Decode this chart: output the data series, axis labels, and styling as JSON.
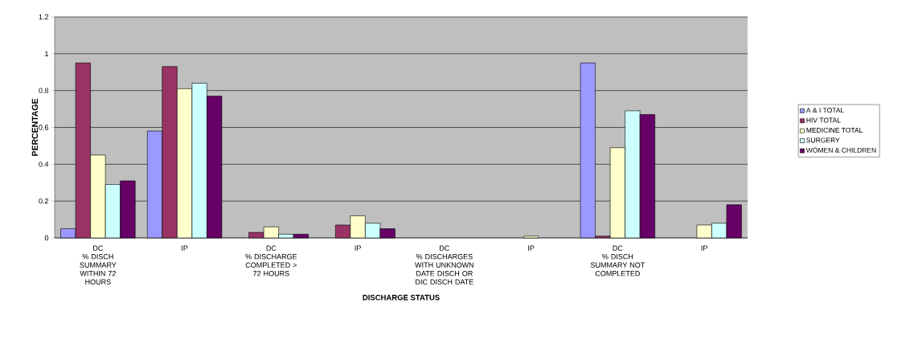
{
  "chart_data": {
    "type": "bar",
    "xlabel": "DISCHARGE STATUS",
    "ylabel": "PERCENTAGE",
    "categories": [
      "DC\n% DISCH\nSUMMARY\nWITHIN 72\nHOURS",
      "IP",
      "DC\n% DISCHARGE\nCOMPLETED >\n72 HOURS",
      "IP",
      "DC\n% DISCHARGES\nWITH UNKNOWN\nDATE DISCH OR\nDIC DISCH DATE",
      "IP",
      "DC\n% DISCH\nSUMMARY NOT\nCOMPLETED",
      "IP"
    ],
    "series": [
      {
        "name": "A & I TOTAL",
        "color": "#9999ff",
        "values": [
          0.05,
          0.58,
          null,
          null,
          null,
          null,
          0.95,
          null
        ]
      },
      {
        "name": "HIV TOTAL",
        "color": "#993366",
        "values": [
          0.95,
          0.93,
          0.03,
          0.07,
          null,
          null,
          0.01,
          null
        ]
      },
      {
        "name": "MEDICINE TOTAL",
        "color": "#ffffcc",
        "values": [
          0.45,
          0.81,
          0.06,
          0.12,
          null,
          0.01,
          0.49,
          0.07
        ]
      },
      {
        "name": "SURGERY",
        "color": "#ccffff",
        "values": [
          0.29,
          0.84,
          0.02,
          0.08,
          null,
          null,
          0.69,
          0.08
        ]
      },
      {
        "name": "WOMEN & CHILDREN",
        "color": "#660066",
        "values": [
          0.31,
          0.77,
          0.02,
          0.05,
          null,
          null,
          0.67,
          0.18
        ]
      }
    ],
    "ylim": [
      0,
      1.2
    ],
    "yticks": [
      0,
      0.2,
      0.4,
      0.6,
      0.8,
      1,
      1.2
    ],
    "grid": "y",
    "legend": "right"
  }
}
